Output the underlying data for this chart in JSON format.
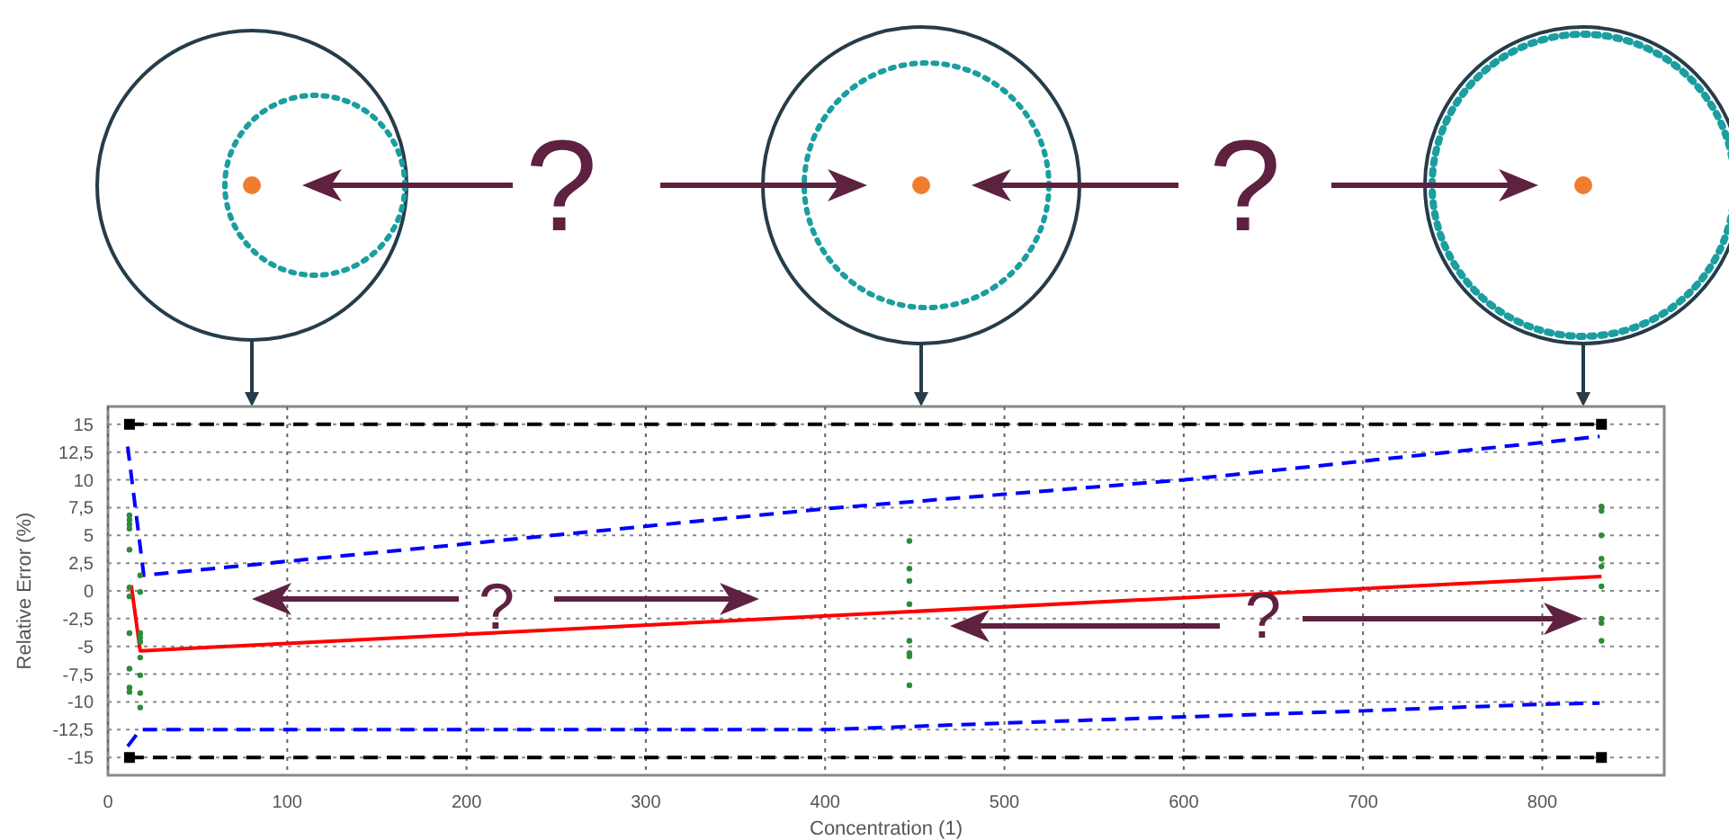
{
  "chart_data": {
    "type": "line",
    "xlabel": "Concentration (1)",
    "ylabel": "Relative Error (%)",
    "xlim": [
      0,
      868
    ],
    "ylim": [
      -16.6,
      16.6
    ],
    "xticks": [
      0,
      100,
      200,
      300,
      400,
      500,
      600,
      700,
      800
    ],
    "yticks": [
      {
        "value": -15,
        "label": "-15"
      },
      {
        "value": -12.5,
        "label": "-12,5"
      },
      {
        "value": -10,
        "label": "-10"
      },
      {
        "value": -7.5,
        "label": "-7,5"
      },
      {
        "value": -5,
        "label": "-5"
      },
      {
        "value": -2.5,
        "label": "-2,5"
      },
      {
        "value": 0,
        "label": "0"
      },
      {
        "value": 2.5,
        "label": "2,5"
      },
      {
        "value": 5,
        "label": "5"
      },
      {
        "value": 7.5,
        "label": "7,5"
      },
      {
        "value": 10,
        "label": "10"
      },
      {
        "value": 12.5,
        "label": "12,5"
      },
      {
        "value": 15,
        "label": "15"
      }
    ],
    "grid": true,
    "annotations": [
      "?",
      "?",
      "?",
      "?"
    ],
    "series": [
      {
        "color": "#000000",
        "x": [
          12,
          833
        ],
        "values": [
          15,
          15
        ],
        "line_style": "dashed",
        "marker": "square"
      },
      {
        "color": "#000000",
        "x": [
          12,
          833
        ],
        "values": [
          -15,
          -15
        ],
        "line_style": "dashed",
        "marker": "square"
      },
      {
        "color": "#0000ff",
        "x": [
          11,
          20,
          400,
          600,
          832
        ],
        "values": [
          13,
          1.4,
          7.4,
          10,
          13.9
        ],
        "line_style": "dashed",
        "marker": "none"
      },
      {
        "color": "#0000ff",
        "x": [
          11,
          18,
          400,
          500,
          700,
          800,
          832
        ],
        "values": [
          -14,
          -12.5,
          -12.5,
          -11.9,
          -10.8,
          -10.2,
          -10.1
        ],
        "line_style": "dashed",
        "marker": "none"
      },
      {
        "color": "#ff0000",
        "x": [
          13,
          18,
          833
        ],
        "values": [
          0.5,
          -5.4,
          1.3
        ],
        "line_style": "solid",
        "marker": "none"
      },
      {
        "type": "scatter",
        "color": "#2e8b3a",
        "marker": "circle",
        "x": [
          12,
          12,
          12,
          12,
          12,
          12,
          12,
          12,
          12,
          12,
          12,
          18,
          18,
          18,
          18,
          18,
          18,
          18,
          18,
          18,
          447,
          447,
          447,
          447,
          447,
          447,
          447,
          447,
          833,
          833,
          833,
          833,
          833,
          833,
          833,
          833,
          833
        ],
        "values": [
          6.8,
          6.4,
          6,
          5.6,
          3.7,
          0.3,
          -0.5,
          -3.8,
          -7,
          -8.7,
          -9.1,
          1.4,
          -0.1,
          -3.8,
          -4.2,
          -4.6,
          -6,
          -7.6,
          -9.2,
          -10.5,
          4.5,
          2,
          0.9,
          -1.2,
          -4.5,
          -5.6,
          -5.9,
          -8.5,
          7.6,
          7.2,
          5,
          2.9,
          2.2,
          0.4,
          -2.5,
          -2.9,
          -4.5
        ]
      }
    ]
  }
}
